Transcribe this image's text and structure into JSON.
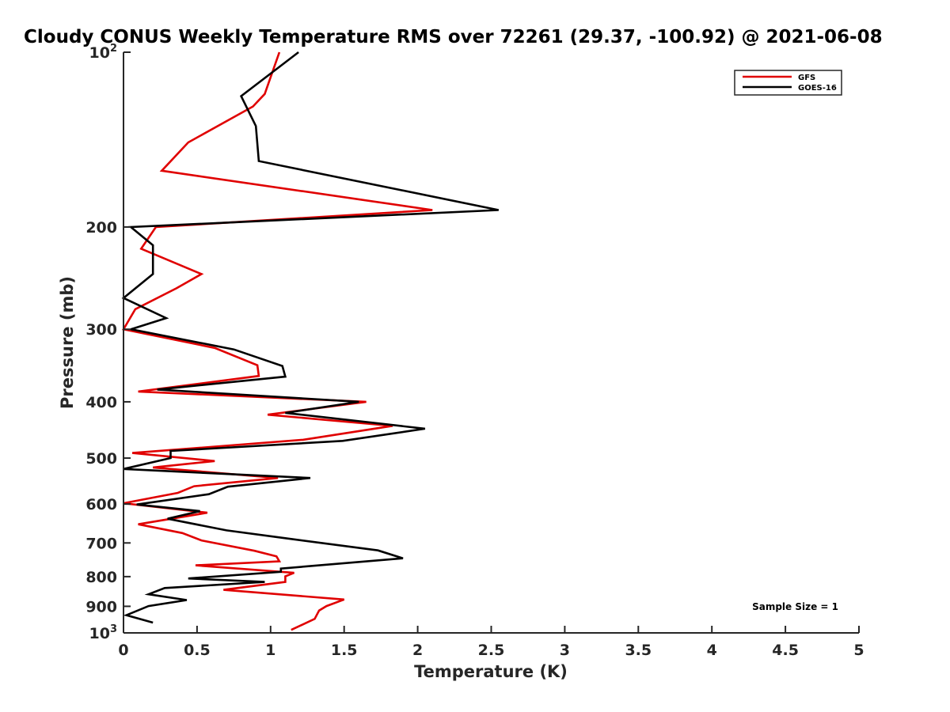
{
  "chart_data": {
    "type": "line",
    "title": "Cloudy CONUS Weekly Temperature RMS over 72261 (29.37, -100.92) @ 2021-06-08",
    "xlabel": "Temperature (K)",
    "ylabel": "Pressure (mb)",
    "xlim": [
      0,
      5
    ],
    "ylim": [
      100,
      1000
    ],
    "yscale": "log",
    "y_reversed": true,
    "grid": false,
    "legend_position": "top-right",
    "x_ticks": [
      "0",
      "0.5",
      "1",
      "1.5",
      "2",
      "2.5",
      "3",
      "3.5",
      "4",
      "4.5",
      "5"
    ],
    "y_ticks": [
      {
        "value": 100,
        "base": "10",
        "exp": "2",
        "label": ""
      },
      {
        "value": 200,
        "label": "200"
      },
      {
        "value": 300,
        "label": "300"
      },
      {
        "value": 400,
        "label": "400"
      },
      {
        "value": 500,
        "label": "500"
      },
      {
        "value": 600,
        "label": "600"
      },
      {
        "value": 700,
        "label": "700"
      },
      {
        "value": 800,
        "label": "800"
      },
      {
        "value": 900,
        "label": "900"
      },
      {
        "value": 1000,
        "base": "10",
        "exp": "3",
        "label": ""
      }
    ],
    "annotation": "Sample Size = 1",
    "series": [
      {
        "name": "GFS",
        "color": "#e00000",
        "points": [
          [
            1.06,
            100
          ],
          [
            0.96,
            118
          ],
          [
            0.88,
            124
          ],
          [
            0.44,
            143
          ],
          [
            0.26,
            160
          ],
          [
            2.1,
            187
          ],
          [
            0.22,
            200
          ],
          [
            0.12,
            218
          ],
          [
            0.53,
            241
          ],
          [
            0.36,
            255
          ],
          [
            0.08,
            277
          ],
          [
            0.0,
            300
          ],
          [
            0.62,
            323
          ],
          [
            0.91,
            346
          ],
          [
            0.92,
            361
          ],
          [
            0.1,
            384
          ],
          [
            1.65,
            400
          ],
          [
            0.98,
            421
          ],
          [
            1.83,
            440
          ],
          [
            1.22,
            465
          ],
          [
            0.06,
            490
          ],
          [
            0.62,
            506
          ],
          [
            0.2,
            519
          ],
          [
            1.05,
            541
          ],
          [
            0.48,
            559
          ],
          [
            0.37,
            574
          ],
          [
            0.0,
            598
          ],
          [
            0.57,
            621
          ],
          [
            0.1,
            650
          ],
          [
            0.4,
            673
          ],
          [
            0.53,
            693
          ],
          [
            0.89,
            722
          ],
          [
            1.04,
            738
          ],
          [
            1.06,
            753
          ],
          [
            0.49,
            765
          ],
          [
            1.16,
            788
          ],
          [
            1.1,
            799
          ],
          [
            1.1,
            817
          ],
          [
            0.68,
            843
          ],
          [
            1.5,
            876
          ],
          [
            1.38,
            899
          ],
          [
            1.33,
            915
          ],
          [
            1.3,
            946
          ],
          [
            1.14,
            988
          ]
        ]
      },
      {
        "name": "GOES-16",
        "color": "#000000",
        "points": [
          [
            1.19,
            100
          ],
          [
            0.8,
            119
          ],
          [
            0.9,
            134
          ],
          [
            0.92,
            154
          ],
          [
            2.55,
            187
          ],
          [
            0.05,
            200
          ],
          [
            0.2,
            215
          ],
          [
            0.2,
            241
          ],
          [
            0.0,
            265
          ],
          [
            0.29,
            287
          ],
          [
            0.05,
            300
          ],
          [
            0.75,
            325
          ],
          [
            1.08,
            347
          ],
          [
            1.1,
            362
          ],
          [
            0.23,
            381
          ],
          [
            1.6,
            400
          ],
          [
            1.1,
            418
          ],
          [
            2.05,
            445
          ],
          [
            1.49,
            467
          ],
          [
            0.32,
            486
          ],
          [
            0.32,
            500
          ],
          [
            0.0,
            522
          ],
          [
            1.27,
            541
          ],
          [
            0.71,
            560
          ],
          [
            0.58,
            577
          ],
          [
            0.09,
            601
          ],
          [
            0.52,
            617
          ],
          [
            0.3,
            636
          ],
          [
            0.7,
            666
          ],
          [
            1.1,
            687
          ],
          [
            1.73,
            721
          ],
          [
            1.9,
            744
          ],
          [
            1.07,
            775
          ],
          [
            1.07,
            785
          ],
          [
            0.44,
            806
          ],
          [
            0.96,
            817
          ],
          [
            0.28,
            837
          ],
          [
            0.17,
            858
          ],
          [
            0.43,
            878
          ],
          [
            0.17,
            899
          ],
          [
            0.02,
            932
          ],
          [
            0.2,
            960
          ]
        ]
      }
    ]
  }
}
